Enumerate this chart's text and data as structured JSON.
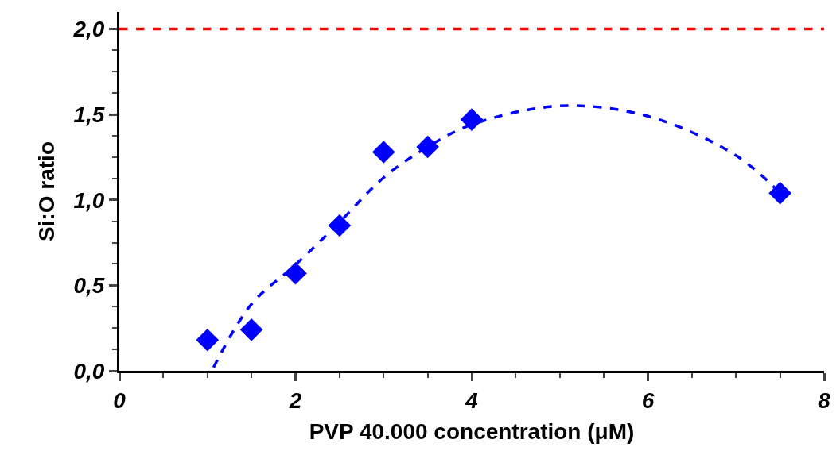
{
  "chart_data": {
    "type": "scatter",
    "xlabel": "PVP 40.000 concentration (μM)",
    "ylabel": "Si:O ratio",
    "xlim": [
      0,
      8
    ],
    "xticks": [
      0,
      2,
      4,
      6,
      8
    ],
    "ylim": [
      0,
      2.1
    ],
    "yticks": [
      {
        "value": 0,
        "label": "0,0"
      },
      {
        "value": 0.5,
        "label": "0,5"
      },
      {
        "value": 1,
        "label": "1,0"
      },
      {
        "value": 1.5,
        "label": "1,5"
      },
      {
        "value": 2,
        "label": "2,0"
      }
    ],
    "legend": false,
    "series": [
      {
        "color": "#0000ff",
        "marker": "diamond",
        "x": [
          1,
          1.5,
          2,
          2.5,
          3,
          3.5,
          4,
          7.5
        ],
        "values": [
          0.18,
          0.24,
          0.57,
          0.85,
          1.28,
          1.31,
          1.47,
          1.04
        ]
      },
      {
        "type": "line",
        "color": "#0000ff",
        "line_style": "dashed",
        "marker": "none",
        "x": [
          1.07,
          1.5,
          2,
          2.5,
          3,
          3.5,
          4,
          5,
          6,
          7,
          7.5
        ],
        "values": [
          0.02,
          0.39,
          0.62,
          0.87,
          1.13,
          1.31,
          1.44,
          1.55,
          1.49,
          1.26,
          1.04
        ]
      }
    ],
    "ref_lines": [
      {
        "axis": "y",
        "value": 2,
        "color": "#ff0000",
        "line_style": "dashed"
      }
    ]
  }
}
